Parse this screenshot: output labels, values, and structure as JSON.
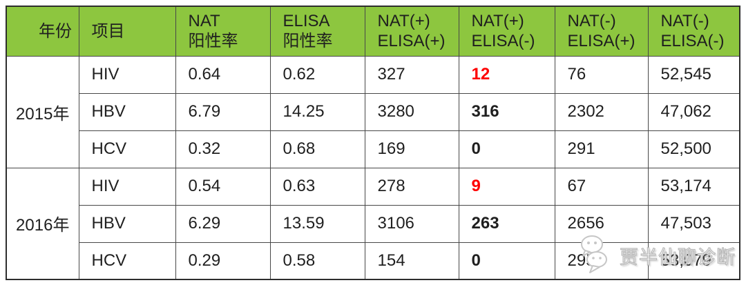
{
  "colors": {
    "header_bg": "#8dc63f",
    "grid_line": "#474747",
    "outer_border": "#2d2d2d",
    "text": "#1f1f1f",
    "highlight_red": "#fe0000",
    "watermark_gray": "#b9b9b9"
  },
  "table": {
    "headers": [
      {
        "lines": [
          "年份"
        ]
      },
      {
        "lines": [
          "项目"
        ]
      },
      {
        "lines": [
          "NAT",
          "阳性率"
        ]
      },
      {
        "lines": [
          "ELISA",
          "阳性率"
        ]
      },
      {
        "lines": [
          "NAT(+)",
          "ELISA(+)"
        ]
      },
      {
        "lines": [
          "NAT(+)",
          "ELISA(-)"
        ]
      },
      {
        "lines": [
          "NAT(-)",
          "ELISA(+)"
        ]
      },
      {
        "lines": [
          "NAT(-)",
          "ELISA(-)"
        ]
      }
    ],
    "groups": [
      {
        "year": "2015年",
        "rows": [
          {
            "item": "HIV",
            "nat_rate": "0.64",
            "elisa_rate": "0.62",
            "nat_pos_elisa_pos": "327",
            "nat_pos_elisa_neg": "12",
            "highlight": "red",
            "nat_neg_elisa_pos": "76",
            "nat_neg_elisa_neg": "52,545"
          },
          {
            "item": "HBV",
            "nat_rate": "6.79",
            "elisa_rate": "14.25",
            "nat_pos_elisa_pos": "3280",
            "nat_pos_elisa_neg": "316",
            "highlight": "bold",
            "nat_neg_elisa_pos": "2302",
            "nat_neg_elisa_neg": "47,062"
          },
          {
            "item": "HCV",
            "nat_rate": "0.32",
            "elisa_rate": "0.68",
            "nat_pos_elisa_pos": "169",
            "nat_pos_elisa_neg": "0",
            "highlight": "bold",
            "nat_neg_elisa_pos": "291",
            "nat_neg_elisa_neg": "52,500"
          }
        ]
      },
      {
        "year": "2016年",
        "rows": [
          {
            "item": "HIV",
            "nat_rate": "0.54",
            "elisa_rate": "0.63",
            "nat_pos_elisa_pos": "278",
            "nat_pos_elisa_neg": "9",
            "highlight": "red",
            "nat_neg_elisa_pos": "67",
            "nat_neg_elisa_neg": "53,174"
          },
          {
            "item": "HBV",
            "nat_rate": "6.29",
            "elisa_rate": "13.59",
            "nat_pos_elisa_pos": "3106",
            "nat_pos_elisa_neg": "263",
            "highlight": "bold",
            "nat_neg_elisa_pos": "2656",
            "nat_neg_elisa_neg": "47,503"
          },
          {
            "item": "HCV",
            "nat_rate": "0.29",
            "elisa_rate": "0.58",
            "nat_pos_elisa_pos": "154",
            "nat_pos_elisa_neg": "0",
            "highlight": "bold",
            "nat_neg_elisa_pos": "295",
            "nat_neg_elisa_neg": "53,079"
          }
        ]
      }
    ]
  },
  "watermark": {
    "icon": "wechat-icon",
    "text": "贾半仙聊诊断"
  },
  "chart_data": {
    "type": "table",
    "title": "",
    "columns": [
      "年份",
      "项目",
      "NAT 阳性率",
      "ELISA 阳性率",
      "NAT(+) ELISA(+)",
      "NAT(+) ELISA(-)",
      "NAT(-) ELISA(+)",
      "NAT(-) ELISA(-)"
    ],
    "rows": [
      [
        "2015年",
        "HIV",
        0.64,
        0.62,
        327,
        12,
        76,
        52545
      ],
      [
        "2015年",
        "HBV",
        6.79,
        14.25,
        3280,
        316,
        2302,
        47062
      ],
      [
        "2015年",
        "HCV",
        0.32,
        0.68,
        169,
        0,
        291,
        52500
      ],
      [
        "2016年",
        "HIV",
        0.54,
        0.63,
        278,
        9,
        67,
        53174
      ],
      [
        "2016年",
        "HBV",
        6.29,
        13.59,
        3106,
        263,
        2656,
        47503
      ],
      [
        "2016年",
        "HCV",
        0.29,
        0.58,
        154,
        0,
        295,
        53079
      ]
    ],
    "notes": "Column NAT(+) ELISA(-) is emphasized: HIV values (12, 9) in bold red, HBV/HCV values (316, 0, 263, 0) in bold black. Header row has green background."
  }
}
